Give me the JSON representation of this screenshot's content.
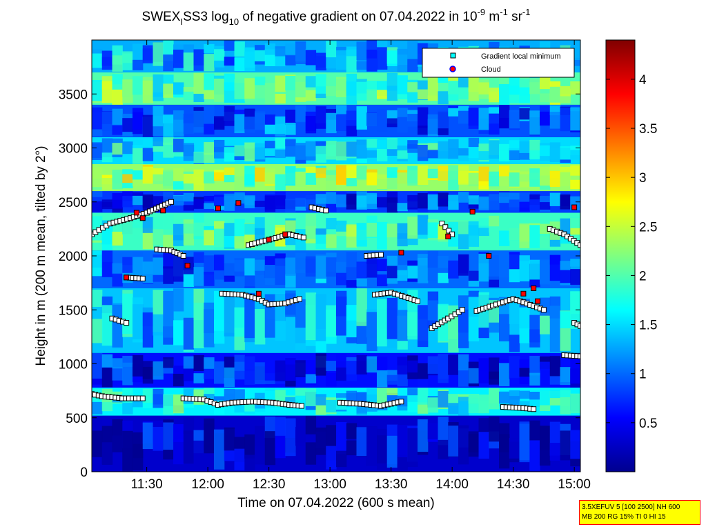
{
  "chart_data": {
    "type": "heatmap",
    "title": {
      "pre": "SWEX",
      "sub_i": "I",
      "mid": "SS3 log",
      "sub_10": "10",
      "post": " of negative gradient on 07.04.2022 in 10",
      "sup_exp": "-9",
      "unit_m": " m",
      "sup_m": "-1",
      "unit_sr": " sr",
      "sup_sr": "-1"
    },
    "xlabel": "Time on 07.04.2022 (600 s mean)",
    "ylabel": "Height in m (200 m mean, tilted by 2°)",
    "x_range": [
      "11:03",
      "15:03"
    ],
    "x_ticks": [
      "11:30",
      "12:00",
      "12:30",
      "13:00",
      "13:30",
      "14:00",
      "14:30",
      "15:00"
    ],
    "y_range": [
      0,
      4000
    ],
    "y_ticks": [
      0,
      500,
      1000,
      1500,
      2000,
      2500,
      3000,
      3500
    ],
    "colorbar": {
      "range": [
        0,
        4.4
      ],
      "ticks": [
        0.5,
        1,
        1.5,
        2,
        2.5,
        3,
        3.5,
        4
      ],
      "colormap": "jet"
    },
    "legend": {
      "position": "top-right",
      "entries": [
        {
          "label": "Gradient local minimum",
          "marker": "square",
          "color": "#00ffff"
        },
        {
          "label": "Cloud",
          "marker": "circle",
          "color": "#ff0000"
        }
      ]
    },
    "layers": [
      {
        "min_h": 0,
        "max_h": 520,
        "value": 0.3
      },
      {
        "min_h": 520,
        "max_h": 780,
        "value": 1.6
      },
      {
        "min_h": 780,
        "max_h": 1100,
        "value": 0.6
      },
      {
        "min_h": 1100,
        "max_h": 1700,
        "value": 1.4
      },
      {
        "min_h": 1700,
        "max_h": 2050,
        "value": 1.0
      },
      {
        "min_h": 2050,
        "max_h": 2400,
        "value": 1.9
      },
      {
        "min_h": 2400,
        "max_h": 2600,
        "value": 0.8
      },
      {
        "min_h": 2600,
        "max_h": 2850,
        "value": 2.3
      },
      {
        "min_h": 2850,
        "max_h": 3100,
        "value": 1.5
      },
      {
        "min_h": 3100,
        "max_h": 3400,
        "value": 0.9
      },
      {
        "min_h": 3400,
        "max_h": 3700,
        "value": 2.0
      },
      {
        "min_h": 3700,
        "max_h": 4000,
        "value": 1.3
      }
    ],
    "gradient_minimum_tracks": [
      {
        "points": [
          [
            "11:03",
            2200
          ],
          [
            "11:12",
            2300
          ],
          [
            "11:22",
            2350
          ],
          [
            "11:30",
            2400
          ],
          [
            "11:36",
            2450
          ],
          [
            "11:42",
            2500
          ]
        ]
      },
      {
        "points": [
          [
            "11:35",
            2060
          ],
          [
            "11:42",
            2050
          ],
          [
            "11:48",
            2000
          ]
        ]
      },
      {
        "points": [
          [
            "11:20",
            1800
          ],
          [
            "11:28",
            1790
          ]
        ]
      },
      {
        "points": [
          [
            "11:13",
            1420
          ],
          [
            "11:20",
            1380
          ]
        ]
      },
      {
        "points": [
          [
            "11:03",
            720
          ],
          [
            "11:08",
            700
          ],
          [
            "11:18",
            680
          ],
          [
            "11:28",
            680
          ]
        ]
      },
      {
        "points": [
          [
            "11:48",
            680
          ],
          [
            "11:58",
            670
          ],
          [
            "12:05",
            620
          ],
          [
            "12:12",
            640
          ],
          [
            "12:22",
            650
          ],
          [
            "12:32",
            640
          ],
          [
            "12:40",
            620
          ],
          [
            "12:46",
            610
          ]
        ]
      },
      {
        "points": [
          [
            "12:07",
            1650
          ],
          [
            "12:17",
            1640
          ],
          [
            "12:25",
            1600
          ],
          [
            "12:30",
            1550
          ],
          [
            "12:38",
            1560
          ],
          [
            "12:45",
            1600
          ]
        ]
      },
      {
        "points": [
          [
            "12:20",
            2100
          ],
          [
            "12:30",
            2150
          ],
          [
            "12:40",
            2200
          ],
          [
            "12:47",
            2170
          ]
        ]
      },
      {
        "points": [
          [
            "12:51",
            2450
          ],
          [
            "12:58",
            2420
          ]
        ]
      },
      {
        "points": [
          [
            "13:05",
            640
          ],
          [
            "13:15",
            630
          ],
          [
            "13:25",
            610
          ],
          [
            "13:35",
            650
          ]
        ]
      },
      {
        "points": [
          [
            "13:22",
            1640
          ],
          [
            "13:30",
            1660
          ],
          [
            "13:37",
            1620
          ],
          [
            "13:43",
            1580
          ]
        ]
      },
      {
        "points": [
          [
            "13:18",
            2000
          ],
          [
            "13:25",
            2010
          ]
        ]
      },
      {
        "points": [
          [
            "13:50",
            1330
          ],
          [
            "13:58",
            1420
          ],
          [
            "14:05",
            1500
          ]
        ]
      },
      {
        "points": [
          [
            "13:55",
            2300
          ],
          [
            "14:00",
            2200
          ]
        ]
      },
      {
        "points": [
          [
            "14:12",
            1490
          ],
          [
            "14:20",
            1540
          ],
          [
            "14:30",
            1600
          ],
          [
            "14:35",
            1570
          ],
          [
            "14:45",
            1500
          ]
        ]
      },
      {
        "points": [
          [
            "14:25",
            600
          ],
          [
            "14:35",
            590
          ],
          [
            "14:40",
            580
          ]
        ]
      },
      {
        "points": [
          [
            "14:48",
            2250
          ],
          [
            "14:55",
            2200
          ],
          [
            "15:03",
            2100
          ]
        ]
      },
      {
        "points": [
          [
            "14:55",
            1080
          ],
          [
            "15:03",
            1070
          ]
        ]
      },
      {
        "points": [
          [
            "15:00",
            1380
          ],
          [
            "15:03",
            1350
          ]
        ]
      }
    ],
    "cloud_points": [
      [
        "11:25",
        2400
      ],
      [
        "11:28",
        2350
      ],
      [
        "11:38",
        2420
      ],
      [
        "11:50",
        1910
      ],
      [
        "12:15",
        2490
      ],
      [
        "12:30",
        2150
      ],
      [
        "12:38",
        2200
      ],
      [
        "12:05",
        2440
      ],
      [
        "12:25",
        1650
      ],
      [
        "13:35",
        2030
      ],
      [
        "13:58",
        2180
      ],
      [
        "14:10",
        2410
      ],
      [
        "14:18",
        2000
      ],
      [
        "14:35",
        1650
      ],
      [
        "14:40",
        1700
      ],
      [
        "14:42",
        1580
      ],
      [
        "15:00",
        2450
      ],
      [
        "11:20",
        1800
      ]
    ]
  },
  "info_box": {
    "line1": "3.5XEFUV 5 [100 2500] NH 600",
    "line2": "MB 200 RG 15% TI 0 HI 15"
  }
}
